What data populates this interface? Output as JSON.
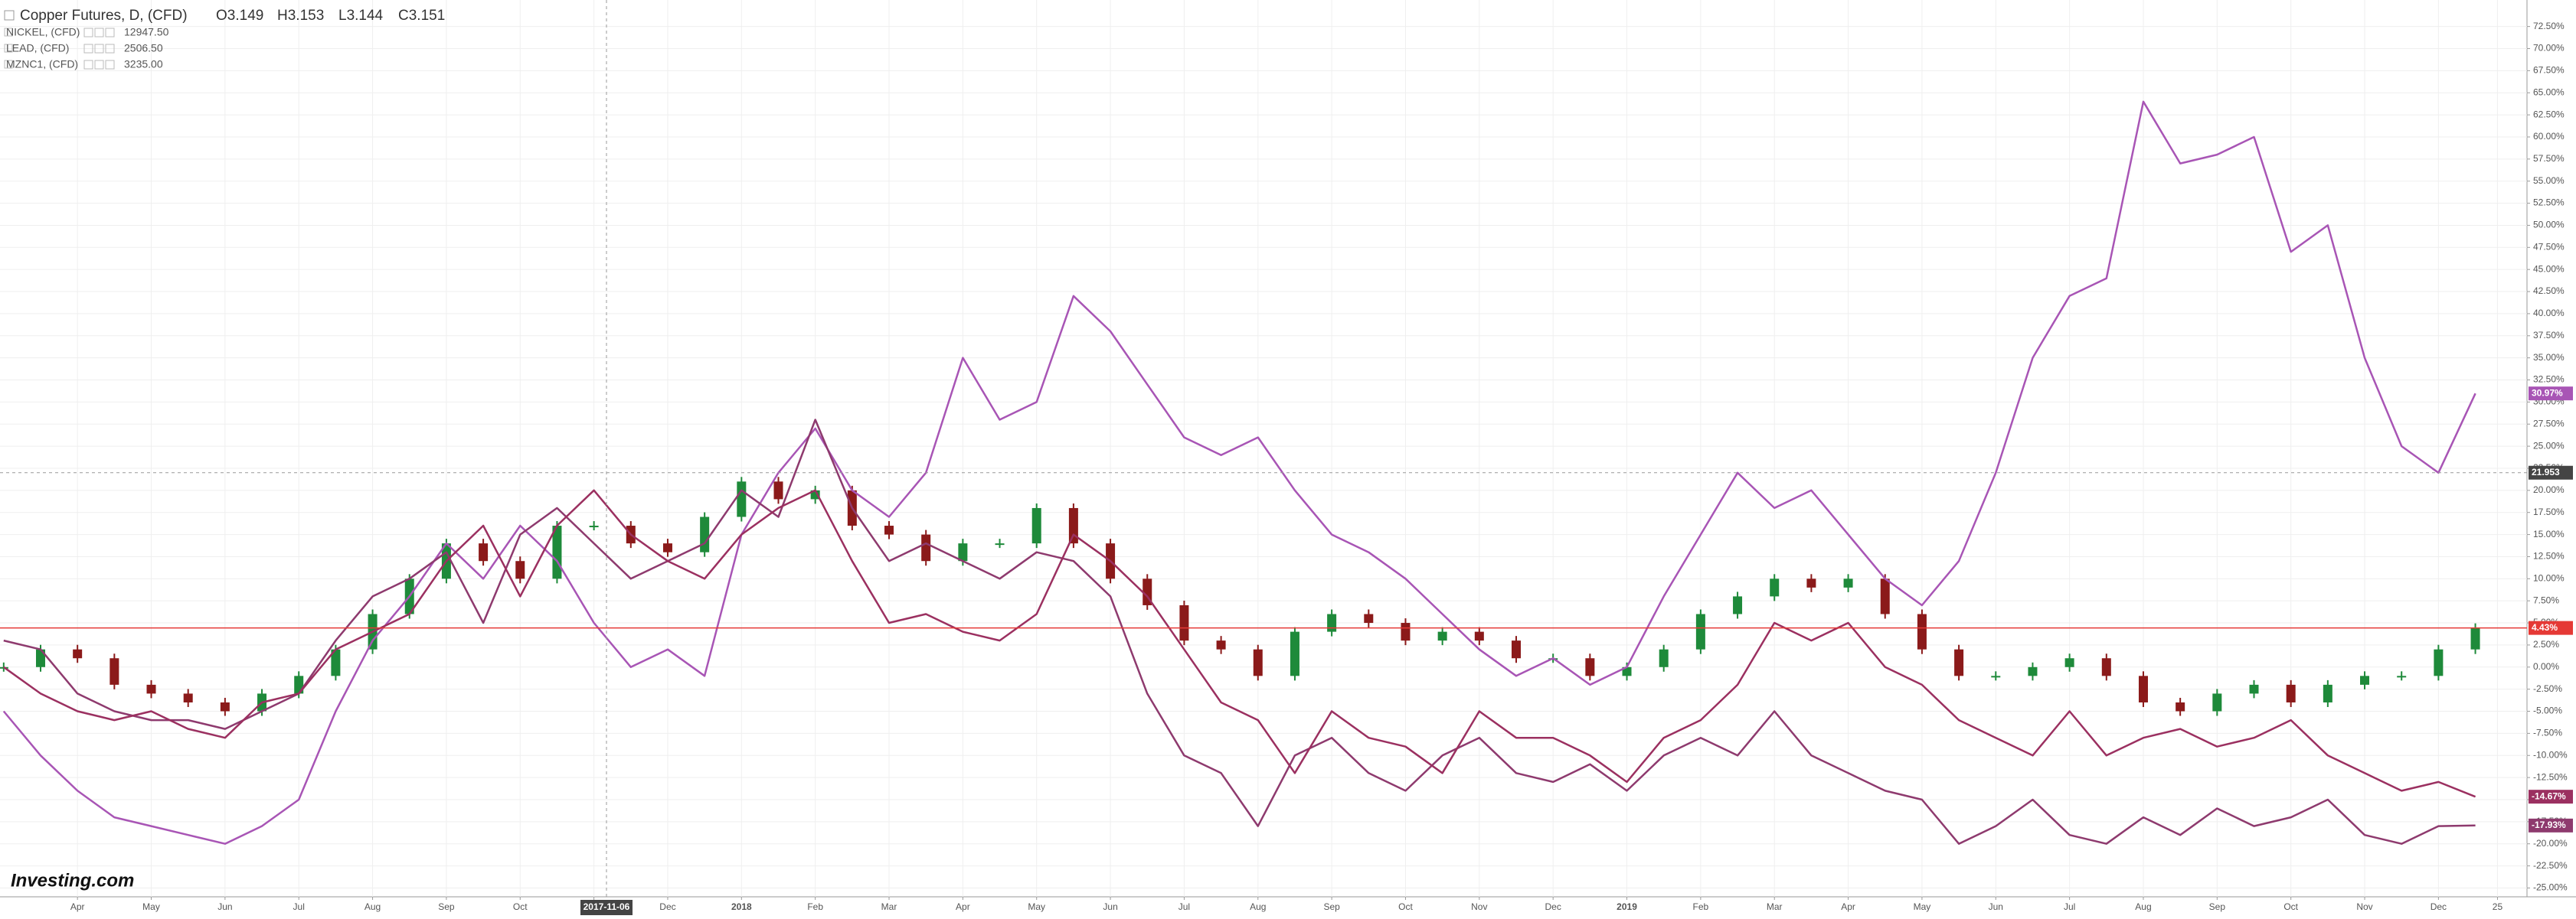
{
  "header": {
    "title": "Copper Futures, D, (CFD)",
    "open": "O3.149",
    "high": "H3.153",
    "low": "L3.144",
    "close": "C3.151"
  },
  "legend": [
    {
      "name": "NICKEL, (CFD)",
      "price": "12947.50",
      "color": "#9c27b0"
    },
    {
      "name": "LEAD, (CFD)",
      "price": "2506.50",
      "color": "#8b2a5a"
    },
    {
      "name": "MZNC1, (CFD)",
      "price": "3235.00",
      "color": "#a0204a"
    }
  ],
  "watermark": "Investing.com",
  "chart_data": {
    "type": "line",
    "xlim": [
      -0.05,
      34.2
    ],
    "ylim": [
      -26,
      75.5
    ],
    "xticks": [
      {
        "value": 1,
        "label": "Apr"
      },
      {
        "value": 2,
        "label": "May"
      },
      {
        "value": 3,
        "label": "Jun"
      },
      {
        "value": 4,
        "label": "Jul"
      },
      {
        "value": 5,
        "label": "Aug"
      },
      {
        "value": 6,
        "label": "Sep"
      },
      {
        "value": 7,
        "label": "Oct"
      },
      {
        "value": 8,
        "label": "Nov"
      },
      {
        "value": 9,
        "label": "Dec"
      },
      {
        "value": 10,
        "label": "2018"
      },
      {
        "value": 11,
        "label": "Feb"
      },
      {
        "value": 12,
        "label": "Mar"
      },
      {
        "value": 13,
        "label": "Apr"
      },
      {
        "value": 14,
        "label": "May"
      },
      {
        "value": 15,
        "label": "Jun"
      },
      {
        "value": 16,
        "label": "Jul"
      },
      {
        "value": 17,
        "label": "Aug"
      },
      {
        "value": 18,
        "label": "Sep"
      },
      {
        "value": 19,
        "label": "Oct"
      },
      {
        "value": 20,
        "label": "Nov"
      },
      {
        "value": 21,
        "label": "Dec"
      },
      {
        "value": 22,
        "label": "2019"
      },
      {
        "value": 23,
        "label": "Feb"
      },
      {
        "value": 24,
        "label": "Mar"
      },
      {
        "value": 25,
        "label": "Apr"
      },
      {
        "value": 26,
        "label": "May"
      },
      {
        "value": 27,
        "label": "Jun"
      },
      {
        "value": 28,
        "label": "Jul"
      },
      {
        "value": 29,
        "label": "Aug"
      },
      {
        "value": 30,
        "label": "Sep"
      },
      {
        "value": 31,
        "label": "Oct"
      },
      {
        "value": 32,
        "label": "Nov"
      },
      {
        "value": 33,
        "label": "Dec"
      },
      {
        "value": 33.8,
        "label": "25"
      }
    ],
    "yticks": [
      {
        "value": -25,
        "label": "-25.00%"
      },
      {
        "value": -22.5,
        "label": "-22.50%"
      },
      {
        "value": -20,
        "label": "-20.00%"
      },
      {
        "value": -17.5,
        "label": "-17.50%"
      },
      {
        "value": -15,
        "label": "-15.00%"
      },
      {
        "value": -12.5,
        "label": "-12.50%"
      },
      {
        "value": -10,
        "label": "-10.00%"
      },
      {
        "value": -7.5,
        "label": "-7.50%"
      },
      {
        "value": -5,
        "label": "-5.00%"
      },
      {
        "value": -2.5,
        "label": "-2.50%"
      },
      {
        "value": 0,
        "label": "0.00%"
      },
      {
        "value": 2.5,
        "label": "2.50%"
      },
      {
        "value": 5,
        "label": "5.00%"
      },
      {
        "value": 7.5,
        "label": "7.50%"
      },
      {
        "value": 10,
        "label": "10.00%"
      },
      {
        "value": 12.5,
        "label": "12.50%"
      },
      {
        "value": 15,
        "label": "15.00%"
      },
      {
        "value": 17.5,
        "label": "17.50%"
      },
      {
        "value": 20,
        "label": "20.00%"
      },
      {
        "value": 22.5,
        "label": "22.50%"
      },
      {
        "value": 25,
        "label": "25.00%"
      },
      {
        "value": 27.5,
        "label": "27.50%"
      },
      {
        "value": 30,
        "label": "30.00%"
      },
      {
        "value": 32.5,
        "label": "32.50%"
      },
      {
        "value": 35,
        "label": "35.00%"
      },
      {
        "value": 37.5,
        "label": "37.50%"
      },
      {
        "value": 40,
        "label": "40.00%"
      },
      {
        "value": 42.5,
        "label": "42.50%"
      },
      {
        "value": 45,
        "label": "45.00%"
      },
      {
        "value": 47.5,
        "label": "47.50%"
      },
      {
        "value": 50,
        "label": "50.00%"
      },
      {
        "value": 52.5,
        "label": "52.50%"
      },
      {
        "value": 55,
        "label": "55.00%"
      },
      {
        "value": 57.5,
        "label": "57.50%"
      },
      {
        "value": 60,
        "label": "60.00%"
      },
      {
        "value": 62.5,
        "label": "62.50%"
      },
      {
        "value": 65,
        "label": "65.00%"
      },
      {
        "value": 67.5,
        "label": "67.50%"
      },
      {
        "value": 70,
        "label": "70.00%"
      },
      {
        "value": 72.5,
        "label": "72.50%"
      }
    ],
    "grid": true,
    "x": [
      0,
      0.5,
      1,
      1.5,
      2,
      2.5,
      3,
      3.5,
      4,
      4.5,
      5,
      5.5,
      6,
      6.5,
      7,
      7.5,
      8,
      8.5,
      9,
      9.5,
      10,
      10.5,
      11,
      11.5,
      12,
      12.5,
      13,
      13.5,
      14,
      14.5,
      15,
      15.5,
      16,
      16.5,
      17,
      17.5,
      18,
      18.5,
      19,
      19.5,
      20,
      20.5,
      21,
      21.5,
      22,
      22.5,
      23,
      23.5,
      24,
      24.5,
      25,
      25.5,
      26,
      26.5,
      27,
      27.5,
      28,
      28.5,
      29,
      29.5,
      30,
      30.5,
      31,
      31.5,
      32,
      32.5,
      33,
      33.5
    ],
    "series": [
      {
        "name": "Copper Futures",
        "type": "candlestick",
        "up_color": "#1e8a3a",
        "down_color": "#8b1a1a",
        "values": [
          0,
          2,
          1,
          -2,
          -3,
          -4,
          -5,
          -3,
          -1,
          2,
          6,
          10,
          14,
          12,
          10,
          16,
          16,
          14,
          13,
          17,
          21,
          19,
          20,
          16,
          15,
          12,
          14,
          14,
          18,
          14,
          10,
          7,
          3,
          2,
          -1,
          4,
          6,
          5,
          3,
          4,
          3,
          1,
          1,
          -1,
          0,
          2,
          6,
          8,
          10,
          9,
          10,
          6,
          2,
          -1,
          -1,
          0,
          1,
          -1,
          -4,
          -5,
          -3,
          -2,
          -4,
          -2,
          -1,
          -1,
          2,
          4.43
        ],
        "value_labels": {
          "67": "4.43%"
        },
        "label_color": "#e53935"
      },
      {
        "name": "NICKEL",
        "color": "#a855b5",
        "values": [
          -5,
          -10,
          -14,
          -17,
          -18,
          -19,
          -20,
          -18,
          -15,
          -5,
          3,
          8,
          14,
          10,
          16,
          12,
          5,
          0,
          2,
          -1,
          15,
          22,
          27,
          20,
          17,
          22,
          35,
          28,
          30,
          42,
          38,
          32,
          26,
          24,
          26,
          20,
          15,
          13,
          10,
          6,
          2,
          -1,
          1,
          -2,
          0,
          8,
          15,
          22,
          18,
          20,
          15,
          10,
          7,
          12,
          22,
          35,
          42,
          44,
          64,
          57,
          58,
          60,
          47,
          50,
          35,
          25,
          22,
          30.97
        ],
        "value_labels": {
          "67": "30.97%"
        }
      },
      {
        "name": "LEAD",
        "color": "#8e3a6e",
        "values": [
          3,
          2,
          -3,
          -5,
          -6,
          -6,
          -7,
          -5,
          -3,
          3,
          8,
          10,
          13,
          5,
          15,
          18,
          14,
          10,
          12,
          14,
          20,
          17,
          28,
          18,
          12,
          14,
          12,
          10,
          13,
          12,
          8,
          -3,
          -10,
          -12,
          -18,
          -10,
          -8,
          -12,
          -14,
          -10,
          -8,
          -12,
          -13,
          -11,
          -14,
          -10,
          -8,
          -10,
          -5,
          -10,
          -12,
          -14,
          -15,
          -20,
          -18,
          -15,
          -19,
          -20,
          -17,
          -19,
          -16,
          -18,
          -17,
          -15,
          -19,
          -20,
          -18,
          -17.93
        ],
        "value_labels": {
          "67": "-17.93%"
        }
      },
      {
        "name": "MZNC1",
        "color": "#9b3060",
        "values": [
          0,
          -3,
          -5,
          -6,
          -5,
          -7,
          -8,
          -4,
          -3,
          2,
          4,
          6,
          12,
          16,
          8,
          16,
          20,
          15,
          12,
          10,
          15,
          18,
          20,
          12,
          5,
          6,
          4,
          3,
          6,
          15,
          12,
          8,
          2,
          -4,
          -6,
          -12,
          -5,
          -8,
          -9,
          -12,
          -5,
          -8,
          -8,
          -10,
          -13,
          -8,
          -6,
          -2,
          5,
          3,
          5,
          0,
          -2,
          -6,
          -8,
          -10,
          -5,
          -10,
          -8,
          -7,
          -9,
          -8,
          -6,
          -10,
          -12,
          -14,
          -13,
          -14.67
        ],
        "value_labels": {
          "67": "-14.67%"
        }
      }
    ],
    "crosshair": {
      "x": 8.17,
      "label": "2017-11-06",
      "y": 22,
      "price_label": "21.953"
    }
  }
}
